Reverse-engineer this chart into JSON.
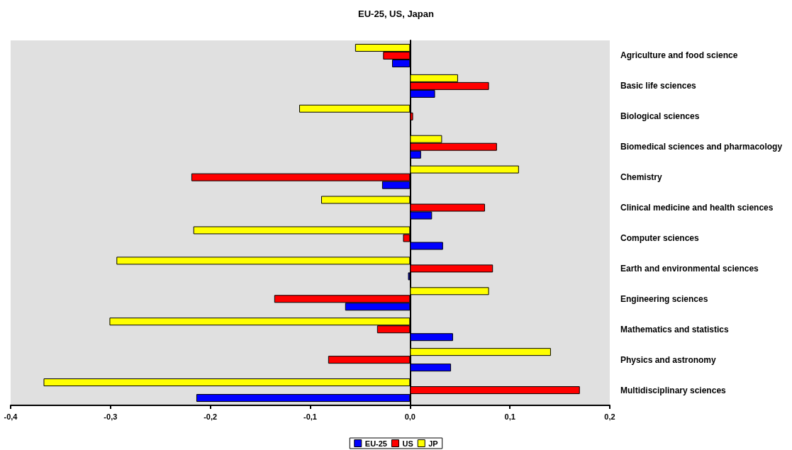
{
  "chart_data": {
    "type": "bar",
    "orientation": "horizontal",
    "title": "EU-25, US, Japan",
    "categories": [
      "Agriculture and food science",
      "Basic life sciences",
      "Biological sciences",
      "Biomedical sciences and pharmacology",
      "Chemistry",
      "Clinical medicine and health sciences",
      "Computer sciences",
      "Earth and environmental sciences",
      "Engineering sciences",
      "Mathematics and statistics",
      "Physics and astronomy",
      "Multidisciplinary sciences"
    ],
    "series": [
      {
        "name": "EU-25",
        "color": "#0000ff",
        "values": [
          -0.018,
          0.025,
          null,
          0.011,
          -0.028,
          0.022,
          0.033,
          -0.002,
          -0.065,
          0.043,
          0.041,
          -0.214
        ]
      },
      {
        "name": "US",
        "color": "#ff0000",
        "values": [
          -0.027,
          0.079,
          0.003,
          0.087,
          -0.219,
          0.075,
          -0.007,
          0.083,
          -0.136,
          -0.033,
          -0.082,
          0.17
        ]
      },
      {
        "name": "JP",
        "color": "#ffff00",
        "values": [
          -0.055,
          0.048,
          -0.111,
          0.032,
          0.109,
          -0.089,
          -0.217,
          -0.294,
          0.079,
          -0.301,
          0.141,
          -0.367
        ]
      }
    ],
    "xlim": [
      -0.4,
      0.2
    ],
    "xticks": [
      {
        "value": -0.4,
        "label": "-0,4"
      },
      {
        "value": -0.3,
        "label": "-0,3"
      },
      {
        "value": -0.2,
        "label": "-0,2"
      },
      {
        "value": -0.1,
        "label": "-0,1"
      },
      {
        "value": 0,
        "label": "0,0"
      },
      {
        "value": 0.1,
        "label": "0,1"
      },
      {
        "value": 0.2,
        "label": "0,2"
      }
    ],
    "legend": "bottom"
  }
}
